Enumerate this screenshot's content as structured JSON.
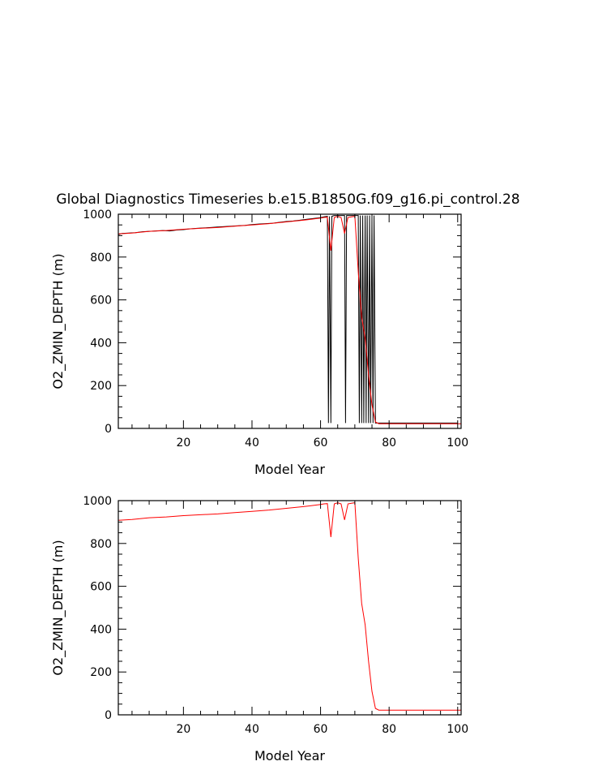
{
  "chart_data": [
    {
      "type": "line",
      "title": "Global Diagnostics Timeseries b.e15.B1850G.f09_g16.pi_control.28",
      "xlabel": "Model Year",
      "ylabel": "O2_ZMIN_DEPTH (m)",
      "xlim": [
        1,
        101
      ],
      "ylim": [
        0,
        1000
      ],
      "xticks": [
        20,
        40,
        60,
        80,
        100
      ],
      "yticks": [
        0,
        200,
        400,
        600,
        800,
        1000
      ],
      "grid": false,
      "series": [
        {
          "kind": "monthly",
          "color": "#000000",
          "x": [
            1,
            2,
            4,
            6,
            8,
            10,
            12,
            14,
            16,
            18,
            20,
            22,
            24,
            26,
            28,
            30,
            32,
            34,
            36,
            38,
            40,
            42,
            44,
            46,
            48,
            50,
            52,
            54,
            56,
            58,
            60,
            61,
            62,
            62.3,
            62.6,
            63,
            63.3,
            63.6,
            64,
            65,
            66,
            67,
            67.3,
            67.6,
            68,
            69,
            70,
            70.5,
            71,
            71.3,
            71.6,
            72,
            72.3,
            72.6,
            73,
            73.3,
            73.6,
            74,
            74.3,
            74.6,
            75,
            75.3,
            75.6,
            76,
            77,
            80,
            85,
            90,
            95,
            100
          ],
          "y": [
            905,
            910,
            912,
            914,
            918,
            920,
            922,
            924,
            922,
            926,
            928,
            932,
            934,
            936,
            938,
            940,
            942,
            944,
            946,
            948,
            952,
            954,
            956,
            958,
            962,
            966,
            968,
            972,
            976,
            980,
            984,
            988,
            990,
            25,
            990,
            25,
            990,
            992,
            994,
            994,
            994,
            994,
            25,
            994,
            994,
            994,
            994,
            994,
            994,
            25,
            994,
            25,
            994,
            25,
            994,
            25,
            994,
            25,
            994,
            25,
            994,
            25,
            994,
            25,
            25,
            25,
            25,
            25,
            25,
            25
          ]
        },
        {
          "kind": "annual",
          "color": "#ff0000",
          "x": [
            1,
            5,
            10,
            15,
            20,
            25,
            30,
            35,
            40,
            45,
            50,
            55,
            60,
            61,
            62,
            63,
            64,
            65,
            66,
            67,
            68,
            69,
            70,
            71,
            72,
            73,
            74,
            75,
            76,
            77,
            80,
            90,
            101
          ],
          "y": [
            908,
            912,
            920,
            924,
            930,
            934,
            938,
            944,
            950,
            956,
            964,
            972,
            982,
            985,
            986,
            830,
            985,
            990,
            985,
            910,
            985,
            988,
            990,
            730,
            520,
            420,
            250,
            110,
            30,
            22,
            22,
            22,
            22
          ]
        }
      ]
    },
    {
      "type": "line",
      "title": "",
      "xlabel": "Model Year",
      "ylabel": "O2_ZMIN_DEPTH (m)",
      "xlim": [
        1,
        101
      ],
      "ylim": [
        0,
        1000
      ],
      "xticks": [
        20,
        40,
        60,
        80,
        100
      ],
      "yticks": [
        0,
        200,
        400,
        600,
        800,
        1000
      ],
      "grid": false,
      "series": [
        {
          "kind": "annual",
          "color": "#ff0000",
          "x": [
            1,
            5,
            10,
            15,
            20,
            25,
            30,
            35,
            40,
            45,
            50,
            55,
            60,
            61,
            62,
            63,
            64,
            65,
            66,
            67,
            68,
            69,
            70,
            71,
            72,
            73,
            74,
            75,
            76,
            77,
            80,
            90,
            101
          ],
          "y": [
            908,
            912,
            920,
            924,
            930,
            934,
            938,
            944,
            950,
            956,
            964,
            972,
            982,
            985,
            986,
            830,
            985,
            990,
            985,
            910,
            985,
            988,
            990,
            730,
            520,
            420,
            250,
            110,
            30,
            22,
            22,
            22,
            22
          ]
        }
      ]
    }
  ]
}
